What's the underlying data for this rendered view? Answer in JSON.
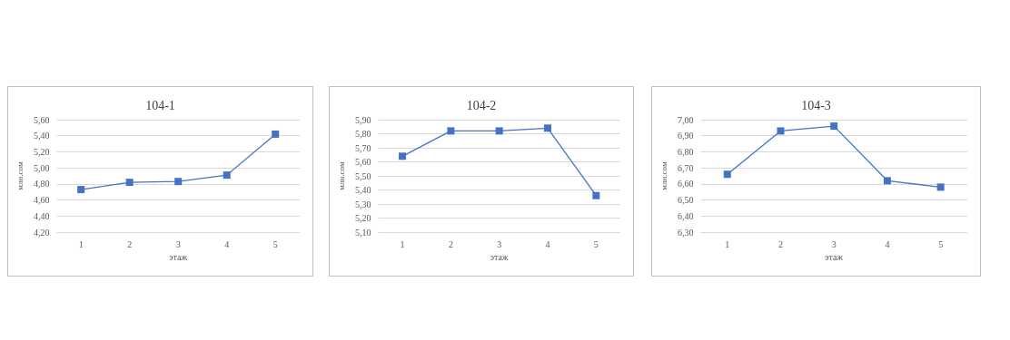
{
  "chart_data": [
    {
      "type": "line",
      "title": "104-1",
      "xlabel": "этаж",
      "ylabel": "млн.сом",
      "categories": [
        "1",
        "2",
        "3",
        "4",
        "5"
      ],
      "series": [
        {
          "color": "#4472c4",
          "values": [
            4.73,
            4.82,
            4.83,
            4.91,
            5.42
          ]
        }
      ],
      "ylim": [
        4.2,
        5.6
      ],
      "yticks": [
        {
          "value": 4.2,
          "label": "4,20"
        },
        {
          "value": 4.4,
          "label": "4,40"
        },
        {
          "value": 4.6,
          "label": "4,60"
        },
        {
          "value": 4.8,
          "label": "4,80"
        },
        {
          "value": 5.0,
          "label": "5,00"
        },
        {
          "value": 5.2,
          "label": "5,20"
        },
        {
          "value": 5.4,
          "label": "5,40"
        },
        {
          "value": 5.6,
          "label": "5,60"
        }
      ],
      "grid": "y",
      "marker": "square",
      "line_style": "solid"
    },
    {
      "type": "line",
      "title": "104-2",
      "xlabel": "этаж",
      "ylabel": "млн.сом",
      "categories": [
        "1",
        "2",
        "3",
        "4",
        "5"
      ],
      "series": [
        {
          "color": "#4472c4",
          "values": [
            5.64,
            5.82,
            5.82,
            5.84,
            5.36
          ]
        }
      ],
      "ylim": [
        5.1,
        5.9
      ],
      "yticks": [
        {
          "value": 5.1,
          "label": "5,10"
        },
        {
          "value": 5.2,
          "label": "5,20"
        },
        {
          "value": 5.3,
          "label": "5,30"
        },
        {
          "value": 5.4,
          "label": "5,40"
        },
        {
          "value": 5.5,
          "label": "5,50"
        },
        {
          "value": 5.6,
          "label": "5,60"
        },
        {
          "value": 5.7,
          "label": "5,70"
        },
        {
          "value": 5.8,
          "label": "5,80"
        },
        {
          "value": 5.9,
          "label": "5,90"
        }
      ],
      "grid": "y",
      "marker": "square",
      "line_style": "solid"
    },
    {
      "type": "line",
      "title": "104-3",
      "xlabel": "этаж",
      "ylabel": "млн.сом",
      "categories": [
        "1",
        "2",
        "3",
        "4",
        "5"
      ],
      "series": [
        {
          "color": "#4472c4",
          "values": [
            6.66,
            6.93,
            6.96,
            6.62,
            6.58
          ]
        }
      ],
      "ylim": [
        6.3,
        7.0
      ],
      "yticks": [
        {
          "value": 6.3,
          "label": "6,30"
        },
        {
          "value": 6.4,
          "label": "6,40"
        },
        {
          "value": 6.5,
          "label": "6,50"
        },
        {
          "value": 6.6,
          "label": "6,60"
        },
        {
          "value": 6.7,
          "label": "6,70"
        },
        {
          "value": 6.8,
          "label": "6,80"
        },
        {
          "value": 6.9,
          "label": "6,90"
        },
        {
          "value": 7.0,
          "label": "7,00"
        }
      ],
      "grid": "y",
      "marker": "square",
      "line_style": "solid"
    }
  ]
}
